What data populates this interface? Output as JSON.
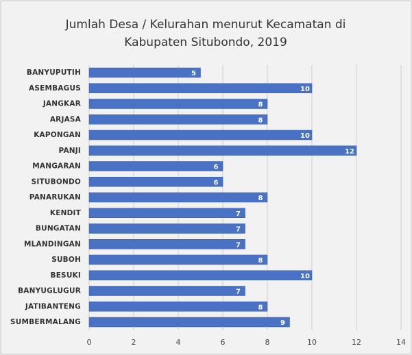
{
  "chart_data": {
    "type": "bar",
    "orientation": "horizontal",
    "title": [
      "Jumlah Desa / Kelurahan menurut Kecamatan di",
      "Kabupaten Situbondo, 2019"
    ],
    "categories": [
      "BANYUPUTIH",
      "ASEMBAGUS",
      "JANGKAR",
      "ARJASA",
      "KAPONGAN",
      "PANJI",
      "MANGARAN",
      "SITUBONDO",
      "PANARUKAN",
      "KENDIT",
      "BUNGATAN",
      "MLANDINGAN",
      "SUBOH",
      "BESUKI",
      "BANYUGLUGUR",
      "JATIBANTENG",
      "SUMBERMALANG"
    ],
    "values": [
      5,
      10,
      8,
      8,
      10,
      12,
      6,
      6,
      8,
      7,
      7,
      7,
      8,
      10,
      7,
      8,
      9
    ],
    "color": "#4a72c4",
    "xlim": [
      0,
      14
    ],
    "xticks": [
      0,
      2,
      4,
      6,
      8,
      10,
      12,
      14
    ],
    "grid": true
  }
}
